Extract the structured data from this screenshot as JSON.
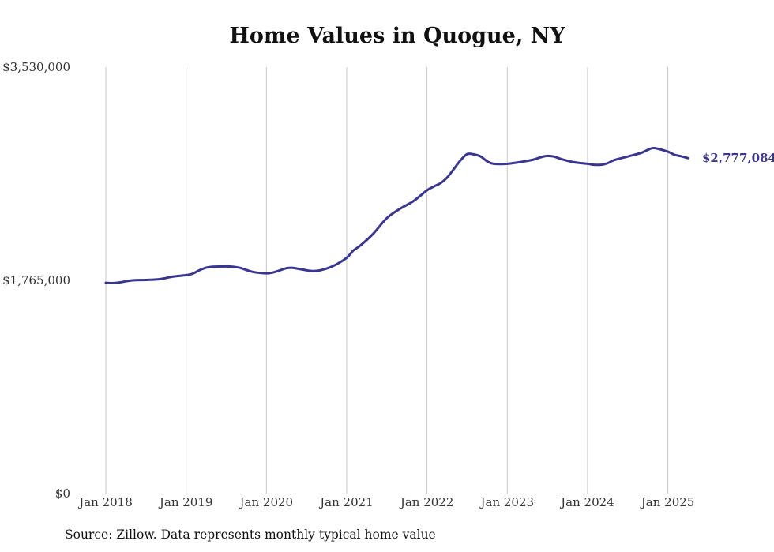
{
  "chart_data": {
    "type": "line",
    "title": "Home Values in Quogue, NY",
    "source": "Source: Zillow. Data represents monthly typical home value",
    "y_ticks": [
      {
        "value": 0,
        "label": "$0"
      },
      {
        "value": 1765000,
        "label": "$1,765,000"
      },
      {
        "value": 3530000,
        "label": "$3,530,000"
      }
    ],
    "ylim": [
      0,
      3530000
    ],
    "x_ticks": [
      {
        "value": 2018.0,
        "label": "Jan 2018"
      },
      {
        "value": 2019.0,
        "label": "Jan 2019"
      },
      {
        "value": 2020.0,
        "label": "Jan 2020"
      },
      {
        "value": 2021.0,
        "label": "Jan 2021"
      },
      {
        "value": 2022.0,
        "label": "Jan 2022"
      },
      {
        "value": 2023.0,
        "label": "Jan 2023"
      },
      {
        "value": 2024.0,
        "label": "Jan 2024"
      },
      {
        "value": 2025.0,
        "label": "Jan 2025"
      }
    ],
    "xlim": [
      2018.0,
      2025.25
    ],
    "grid": true,
    "series": [
      {
        "color": "#3a3591",
        "last_label": "$2,777,084",
        "x": [
          2018.0,
          2018.08,
          2018.17,
          2018.33,
          2018.5,
          2018.67,
          2018.83,
          2019.0,
          2019.08,
          2019.17,
          2019.25,
          2019.33,
          2019.5,
          2019.58,
          2019.67,
          2019.83,
          2020.0,
          2020.08,
          2020.17,
          2020.25,
          2020.33,
          2020.5,
          2020.58,
          2020.67,
          2020.83,
          2021.0,
          2021.08,
          2021.17,
          2021.33,
          2021.5,
          2021.67,
          2021.83,
          2022.0,
          2022.08,
          2022.17,
          2022.25,
          2022.33,
          2022.42,
          2022.5,
          2022.58,
          2022.67,
          2022.75,
          2022.83,
          2023.0,
          2023.17,
          2023.33,
          2023.42,
          2023.5,
          2023.58,
          2023.67,
          2023.83,
          2024.0,
          2024.08,
          2024.17,
          2024.25,
          2024.33,
          2024.5,
          2024.67,
          2024.75,
          2024.83,
          2025.0,
          2025.08,
          2025.17,
          2025.25
        ],
        "y": [
          1745000,
          1742000,
          1748000,
          1765000,
          1768000,
          1775000,
          1795000,
          1808000,
          1820000,
          1850000,
          1870000,
          1878000,
          1880000,
          1878000,
          1868000,
          1835000,
          1823000,
          1830000,
          1848000,
          1865000,
          1868000,
          1848000,
          1842000,
          1848000,
          1883000,
          1952000,
          2010000,
          2053000,
          2150000,
          2280000,
          2360000,
          2420000,
          2510000,
          2540000,
          2570000,
          2615000,
          2683000,
          2760000,
          2810000,
          2808000,
          2790000,
          2750000,
          2730000,
          2730000,
          2745000,
          2765000,
          2785000,
          2795000,
          2790000,
          2770000,
          2743000,
          2730000,
          2722000,
          2722000,
          2735000,
          2760000,
          2790000,
          2820000,
          2845000,
          2860000,
          2830000,
          2805000,
          2792000,
          2777084
        ]
      }
    ]
  }
}
